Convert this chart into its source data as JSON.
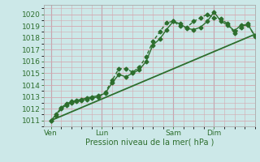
{
  "title": "Pression niveau de la mer( hPa )",
  "bg_color": "#cce8e8",
  "grid_color_h": "#d4a8b0",
  "grid_color_v": "#d4a8b0",
  "line_color": "#2d6e2d",
  "tick_color": "#2d6e2d",
  "text_color": "#2d6e2d",
  "ylim": [
    1010.5,
    1020.8
  ],
  "xlim": [
    -2,
    122
  ],
  "xtick_positions": [
    2,
    32,
    74,
    98
  ],
  "xtick_labels": [
    "Ven",
    "Lun",
    "Sam",
    "Dim"
  ],
  "ytick_positions": [
    1011,
    1012,
    1013,
    1014,
    1015,
    1016,
    1017,
    1018,
    1019,
    1020
  ],
  "vlines": [
    2,
    32,
    74,
    98
  ],
  "series1_x": [
    2,
    5,
    8,
    11,
    14,
    17,
    20,
    23,
    26,
    30,
    34,
    38,
    42,
    46,
    50,
    54,
    58,
    62,
    66,
    70,
    74,
    78,
    82,
    86,
    90,
    94,
    98,
    102,
    106,
    110,
    114,
    118,
    122
  ],
  "series1_y": [
    1011.0,
    1011.5,
    1012.1,
    1012.4,
    1012.6,
    1012.7,
    1012.8,
    1012.9,
    1013.0,
    1013.1,
    1013.3,
    1014.2,
    1014.9,
    1014.7,
    1015.0,
    1015.3,
    1016.0,
    1017.4,
    1017.9,
    1018.7,
    1019.4,
    1019.2,
    1018.8,
    1018.7,
    1018.9,
    1019.4,
    1020.2,
    1019.4,
    1019.1,
    1018.6,
    1019.1,
    1019.1,
    1018.2
  ],
  "series2_x": [
    2,
    5,
    8,
    11,
    14,
    17,
    20,
    23,
    26,
    30,
    34,
    38,
    42,
    46,
    50,
    54,
    58,
    62,
    66,
    70,
    74,
    78,
    82,
    86,
    90,
    94,
    98,
    102,
    106,
    110,
    114,
    118,
    122
  ],
  "series2_y": [
    1011.0,
    1011.4,
    1012.0,
    1012.3,
    1012.5,
    1012.6,
    1012.7,
    1012.8,
    1012.9,
    1013.0,
    1013.4,
    1014.4,
    1015.4,
    1015.4,
    1015.1,
    1015.5,
    1016.4,
    1017.7,
    1018.5,
    1019.3,
    1019.4,
    1019.0,
    1018.9,
    1019.4,
    1019.7,
    1020.0,
    1019.7,
    1019.6,
    1019.2,
    1018.4,
    1018.9,
    1019.2,
    1018.1
  ],
  "series3_x": [
    2,
    122
  ],
  "series3_y": [
    1011.0,
    1018.3
  ],
  "marker_size": 2.5,
  "linewidth": 1.0,
  "linewidth3": 1.3
}
